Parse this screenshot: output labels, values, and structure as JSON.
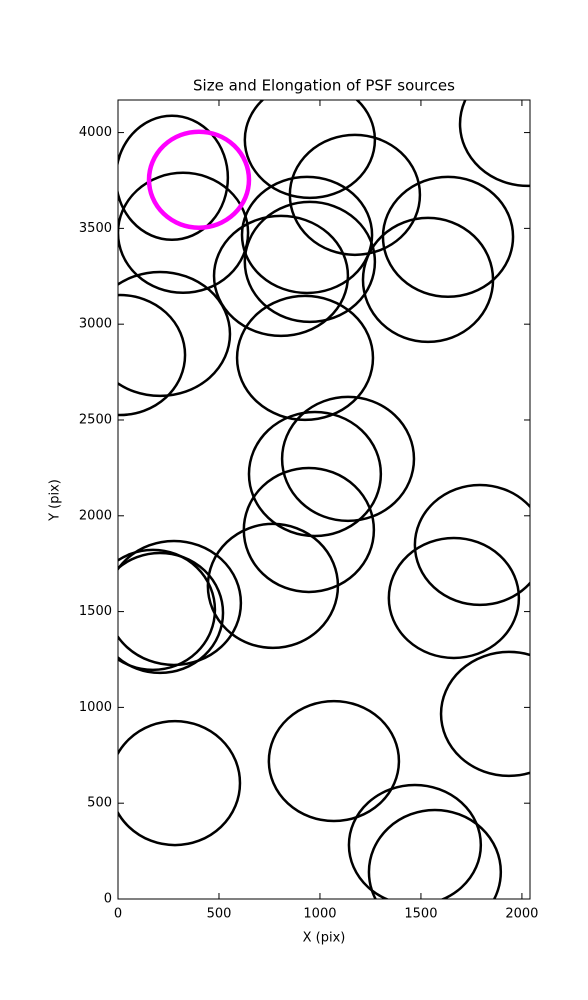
{
  "chart_data": {
    "type": "ellipse",
    "title": "Size and Elongation of PSF sources",
    "xlabel": "X (pix)",
    "ylabel": "Y (pix)",
    "xlim": [
      0,
      2040
    ],
    "ylim": [
      0,
      4170
    ],
    "xticks": [
      0,
      500,
      1000,
      1500,
      2000
    ],
    "yticks": [
      0,
      500,
      1000,
      1500,
      2000,
      2500,
      3000,
      3500,
      4000
    ],
    "series": [
      {
        "color": "#000000",
        "x": [
          267,
          322,
          950,
          936,
          1173,
          2030,
          1634,
          950,
          807,
          1535,
          208,
          10,
          926,
          1139,
          975,
          945,
          767,
          277,
          208,
          173,
          1792,
          1663,
          1936,
          1069,
          282,
          1470,
          1569
        ],
        "y": [
          3764,
          3477,
          3962,
          3466,
          3675,
          4045,
          3456,
          3325,
          3252,
          3231,
          2949,
          2839,
          2824,
          2297,
          2218,
          1926,
          1634,
          1545,
          1493,
          1509,
          1848,
          1571,
          966,
          720,
          605,
          282,
          141
        ],
        "width": [
          554,
          644,
          644,
          644,
          644,
          673,
          644,
          644,
          663,
          644,
          693,
          644,
          673,
          653,
          653,
          644,
          644,
          663,
          624,
          614,
          644,
          644,
          673,
          644,
          644,
          653,
          653
        ],
        "height": [
          647,
          626,
          606,
          606,
          626,
          647,
          626,
          626,
          626,
          647,
          647,
          626,
          647,
          647,
          647,
          647,
          647,
          647,
          626,
          626,
          626,
          626,
          647,
          626,
          647,
          626,
          647
        ]
      },
      {
        "color": "#ff00ff",
        "x": [
          401
        ],
        "y": [
          3754
        ],
        "width": [
          495
        ],
        "height": [
          501
        ]
      }
    ]
  }
}
